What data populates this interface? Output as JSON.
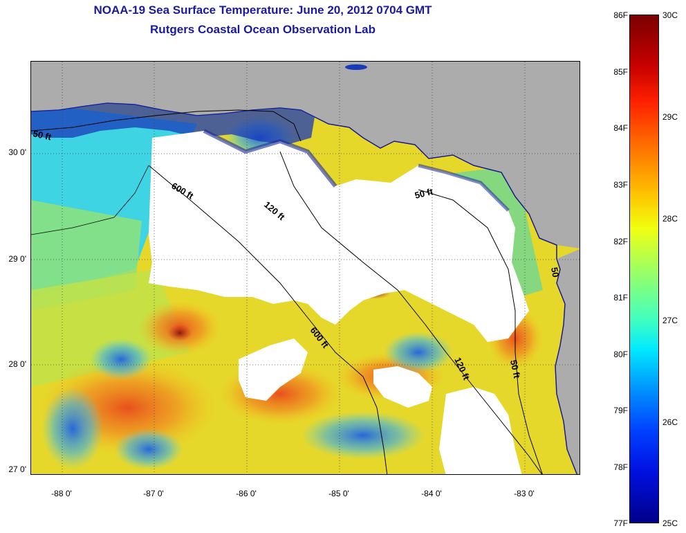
{
  "title": {
    "line1": "NOAA-19 Sea Surface Temperature:  June 20, 2012 0704 GMT",
    "line2": "Rutgers Coastal Ocean Observation Lab"
  },
  "map": {
    "y_ticks": [
      "30 0'",
      "29 0'",
      "28 0'",
      "27 0'"
    ],
    "x_ticks": [
      "-88 0'",
      "-87 0'",
      "-86 0'",
      "-85 0'",
      "-84 0'",
      "-83 0'"
    ],
    "contour_labels": [
      "50 ft",
      "600 ft",
      "120 ft",
      "50 ft",
      "600 ft",
      "120 ft",
      "50 ft",
      "50"
    ],
    "colors": {
      "land": "#acacac",
      "cloud": "#ffffff",
      "warm": "#f0c020",
      "cool": "#38c8e0"
    }
  },
  "colorbar": {
    "f_labels": [
      "86F",
      "85F",
      "84F",
      "83F",
      "82F",
      "81F",
      "80F",
      "79F",
      "78F",
      "77F"
    ],
    "c_labels": [
      "30C",
      "29C",
      "28C",
      "27C",
      "26C",
      "25C"
    ]
  }
}
